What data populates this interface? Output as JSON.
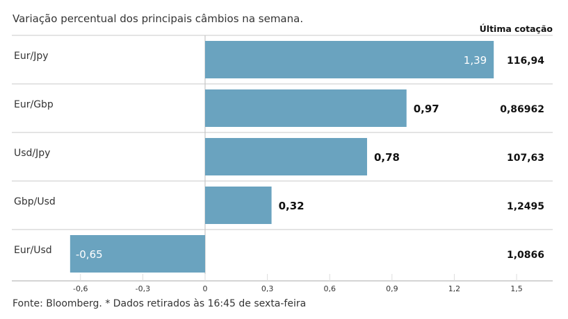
{
  "chart_data": {
    "type": "bar",
    "orientation": "horizontal",
    "title": "Variação percentual dos principais câmbios na semana.",
    "categories": [
      "Eur/Jpy",
      "Eur/Gbp",
      "Usd/Jpy",
      "Gbp/Usd",
      "Eur/Usd"
    ],
    "values": [
      1.39,
      0.97,
      0.78,
      0.32,
      -0.65
    ],
    "value_labels": [
      "1,39",
      "0,97",
      "0,78",
      "0,32",
      "-0,65"
    ],
    "extra_column": {
      "header": "Última cotação",
      "values": [
        "116,94",
        "0,86962",
        "107,63",
        "1,2495",
        "1,0866"
      ]
    },
    "xlim": [
      -0.9,
      1.67
    ],
    "xticks": [
      -0.6,
      -0.3,
      0,
      0.3,
      0.6,
      0.9,
      1.2,
      1.5
    ],
    "xtick_labels": [
      "-0,6",
      "-0,3",
      "0",
      "0,3",
      "0,6",
      "0,9",
      "1,2",
      "1,5"
    ],
    "grid": false,
    "bar_color": "#6aa3bf",
    "footnote": "Fonte: Bloomberg.  * Dados retirados às 16:45 de sexta-feira"
  }
}
